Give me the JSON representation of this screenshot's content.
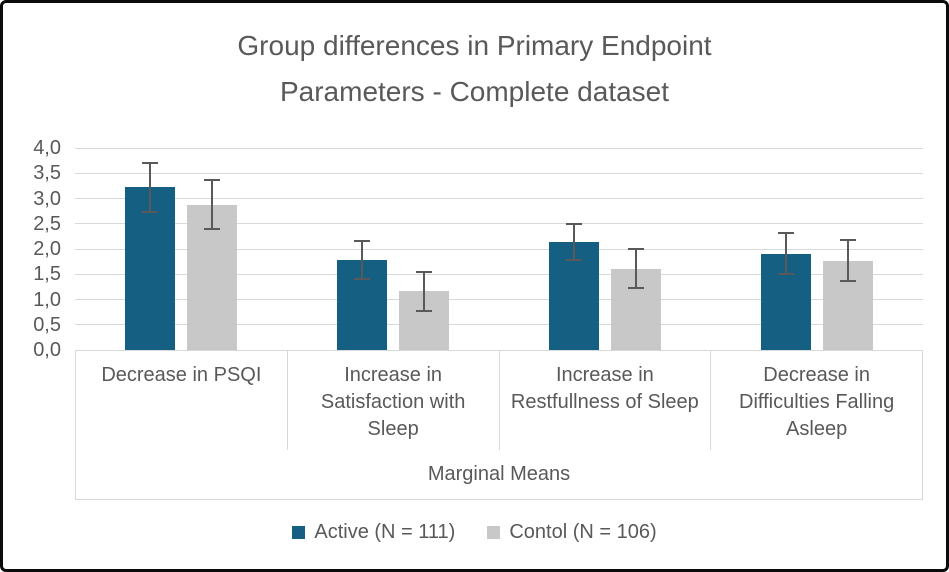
{
  "colors": {
    "text": "#595959",
    "gridline": "#d9d9d9",
    "axis_box_border": "#d9d9d9",
    "error_bar": "#595959",
    "canvas_border": "#0b0b0b",
    "background": "#ffffff"
  },
  "chart_data": {
    "type": "bar",
    "title": "Group differences in Primary Endpoint Parameters - Complete dataset",
    "title_lines": [
      "Group differences in Primary Endpoint",
      "Parameters - Complete dataset"
    ],
    "xlabel": "Marginal Means",
    "ylabel": "",
    "ylim": [
      0,
      4
    ],
    "ytick_step": 0.5,
    "yticks_bottom_to_top": [
      "0,0",
      "0,5",
      "1,0",
      "1,5",
      "2,0",
      "2,5",
      "3,0",
      "3,5",
      "4,0"
    ],
    "grid": true,
    "legend_position": "bottom",
    "decimal_separator": ",",
    "categories": [
      "Decrease in PSQI",
      "Increase in Satisfaction with Sleep",
      "Increase in Restfullness of Sleep",
      "Decrease in Difficulties Falling Asleep"
    ],
    "series": [
      {
        "name": "Active (N = 111)",
        "color": "#156082",
        "values": [
          3.22,
          1.78,
          2.14,
          1.91
        ],
        "errors": [
          0.48,
          0.38,
          0.36,
          0.4
        ]
      },
      {
        "name": "Contol (N = 106)",
        "color": "#c8c8c8",
        "values": [
          2.88,
          1.16,
          1.61,
          1.77
        ],
        "errors": [
          0.48,
          0.39,
          0.39,
          0.4
        ]
      }
    ]
  }
}
